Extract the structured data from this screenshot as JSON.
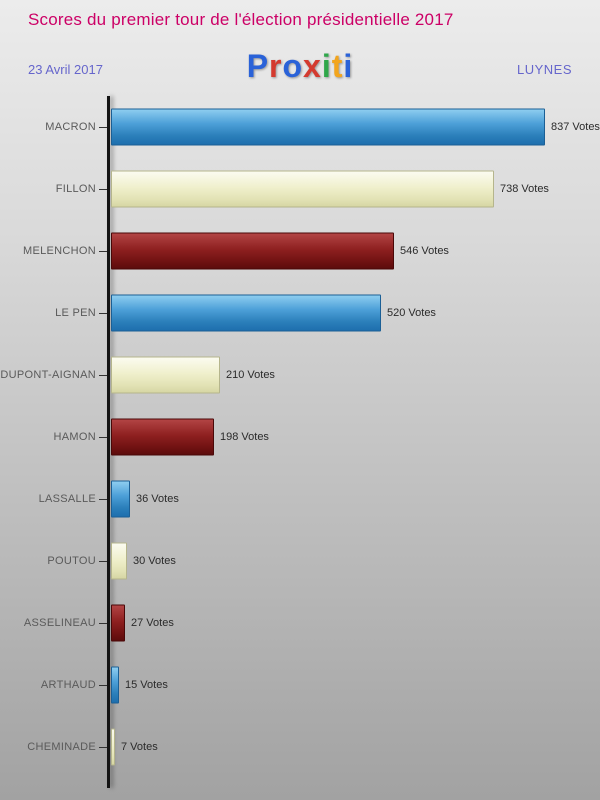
{
  "header": {
    "title": "Scores du premier tour de l'élection présidentielle 2017",
    "date": "23 Avril 2017",
    "location": "LUYNES",
    "logo": {
      "name": "Proxiti",
      "letters": [
        {
          "ch": "P",
          "color": "#2a62d8"
        },
        {
          "ch": "r",
          "color": "#d43a2f"
        },
        {
          "ch": "o",
          "color": "#2a62d8"
        },
        {
          "ch": "x",
          "color": "#d43a2f"
        },
        {
          "ch": "i",
          "color": "#2fa74a"
        },
        {
          "ch": "t",
          "color": "#f2a51e"
        },
        {
          "ch": "i",
          "color": "#2a62d8"
        }
      ]
    }
  },
  "chart_data": {
    "type": "bar",
    "orientation": "horizontal",
    "title": "Scores du premier tour de l'élection présidentielle 2017",
    "categories": [
      "MACRON",
      "FILLON",
      "MELENCHON",
      "LE PEN",
      "DUPONT-AIGNAN",
      "HAMON",
      "LASSALLE",
      "POUTOU",
      "ASSELINEAU",
      "ARTHAUD",
      "CHEMINADE"
    ],
    "values": [
      837,
      738,
      546,
      520,
      210,
      198,
      36,
      30,
      27,
      15,
      7
    ],
    "value_suffix": " Votes",
    "xlim": [
      0,
      860
    ],
    "grid": false,
    "legend": false,
    "color_cycle": [
      "blue",
      "cream",
      "darkred"
    ],
    "colors": {
      "blue": "#2e86c6",
      "cream": "#eeeec8",
      "darkred": "#7f1717",
      "axis": "#141414",
      "title": "#cc0066",
      "subtitle": "#6666cc"
    }
  }
}
